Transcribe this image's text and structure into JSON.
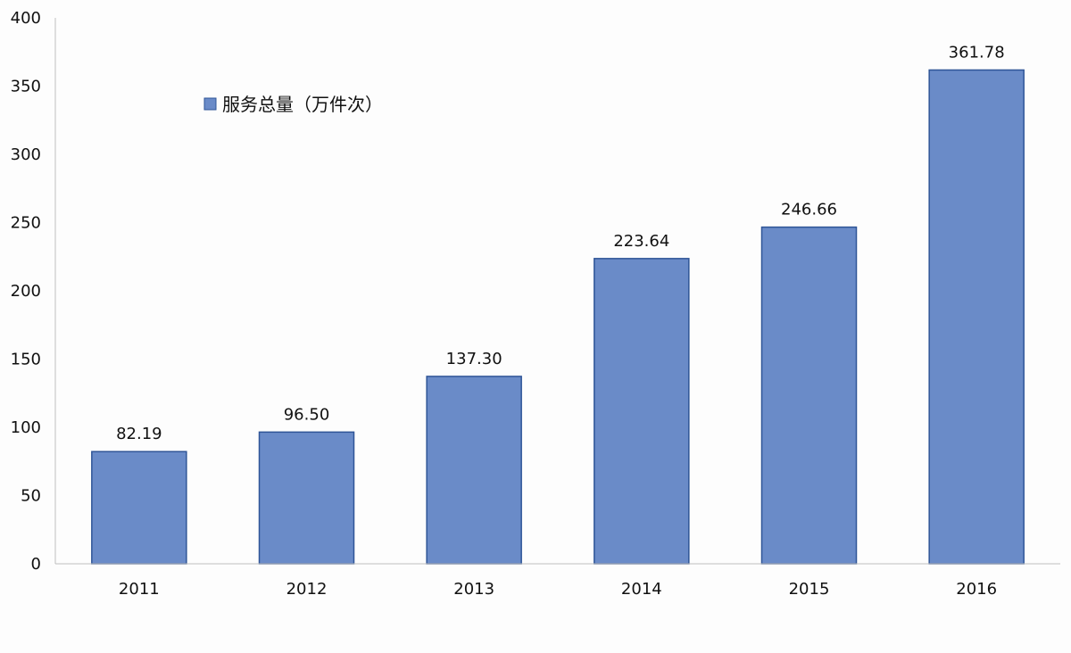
{
  "chart_data": {
    "type": "bar",
    "categories": [
      "2011",
      "2012",
      "2013",
      "2014",
      "2015",
      "2016"
    ],
    "series": [
      {
        "name": "服务总量（万件次）",
        "values": [
          82.19,
          96.5,
          137.3,
          223.64,
          246.66,
          361.78
        ],
        "data_labels": [
          "82.19",
          "96.50",
          "137.30",
          "223.64",
          "246.66",
          "361.78"
        ],
        "color": "#6a8bc8",
        "border_color": "#2f5597"
      }
    ],
    "ylim": [
      0,
      400
    ],
    "yticks": [
      0,
      50,
      100,
      150,
      200,
      250,
      300,
      350,
      400
    ],
    "title": "",
    "xlabel": "",
    "ylabel": "",
    "grid": false,
    "legend_position": "top-left"
  }
}
